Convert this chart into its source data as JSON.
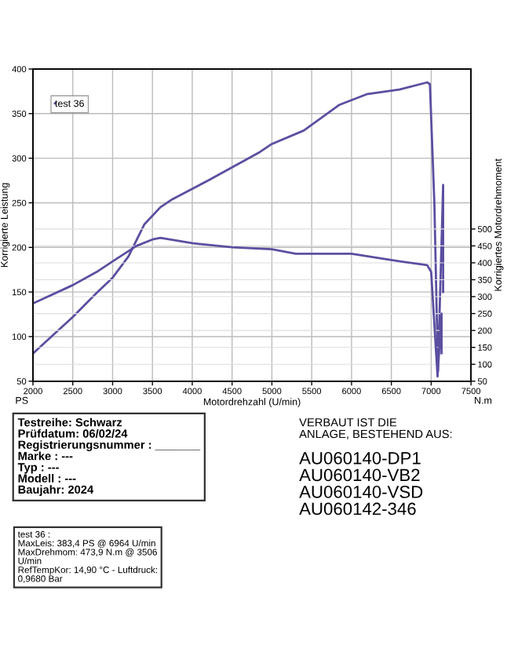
{
  "chart_data": {
    "type": "line",
    "xlabel": "Motordrehzahl (U/min)",
    "ylabel": "Korrigierte Leistung",
    "y2label": "Korrigiertes Motordrehmoment",
    "xlim": [
      2000,
      7500
    ],
    "xticks": [
      2000,
      2500,
      3000,
      3500,
      4000,
      4500,
      5000,
      5500,
      6000,
      6500,
      7000,
      7500
    ],
    "ylim": [
      50,
      400
    ],
    "yticks": [
      50,
      100,
      150,
      200,
      250,
      300,
      350,
      400
    ],
    "y2lim": [
      50,
      973
    ],
    "y2ticks": [
      50,
      100,
      150,
      200,
      250,
      300,
      350,
      400,
      450,
      500
    ],
    "grid": true,
    "legend": "top left",
    "marker": "none",
    "line_style": "solid",
    "series": [
      {
        "name": "test 36",
        "color": "#5a4fa0",
        "x": [
          2000,
          2500,
          2800,
          3000,
          3200,
          3400,
          3600,
          3750,
          4200,
          4850,
          5000,
          5400,
          5850,
          6200,
          6600,
          6950,
          6984,
          7040,
          7085,
          7150,
          7150
        ],
        "values": [
          81,
          122,
          149,
          166,
          190,
          226,
          245,
          254,
          275,
          307,
          316,
          331,
          360,
          372,
          377,
          385,
          383,
          250,
          61,
          270,
          150
        ]
      },
      {
        "color": "#5a4fa0",
        "axis": "y2",
        "x": [
          2000,
          2500,
          2800,
          3000,
          3300,
          3500,
          3600,
          4000,
          4500,
          5000,
          5300,
          6000,
          6500,
          6950,
          7000,
          7080,
          7130,
          7130
        ],
        "values": [
          280,
          334,
          373,
          404,
          450,
          469,
          474,
          458,
          446,
          440,
          427,
          427,
          408,
          393,
          373,
          64,
          250,
          133
        ]
      }
    ],
    "annotations": [
      "PS",
      "N.m",
      "Testreihe: Schwarz\nPrüfdatum: 06/02/24\nRegistrierungsnummer : _______\nMarke : ---\nTyp : ---\nModell : ---\nBaujahr: 2024",
      "VERBAUT IST DIE\nANLAGE, BESTEHEND AUS:",
      "AU060140-DP1\nAU060140-VB2\nAU060140-VSD\nAU060142-346",
      "test 36 :\nMaxLeis: 383,4 PS @ 6964 U/min\nMaxDrehmom: 473,9 N.m @ 3506\nU/min\nRefTempKor: 14,90 °C - Luftdruck:\n0,9680 Bar"
    ]
  }
}
